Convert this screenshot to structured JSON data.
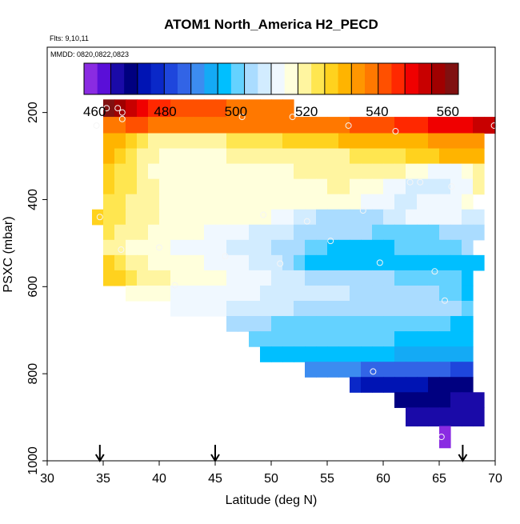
{
  "chart_data": {
    "type": "heatmap",
    "title": "ATOM1 North_America H2_PECD",
    "subtitle_flights": "Flts: 9,10,11",
    "subtitle_dates": "MMDD: 0820,0822,0823",
    "xlabel": "Latitude (deg N)",
    "ylabel": "PSXC (mbar)",
    "xlim": [
      30,
      70
    ],
    "ylim": [
      1000,
      50
    ],
    "x_ticks": [
      30,
      35,
      40,
      45,
      50,
      55,
      60,
      65,
      70
    ],
    "y_ticks": [
      200,
      400,
      600,
      800,
      1000
    ],
    "colorbar": {
      "min": 457,
      "max": 563,
      "ticks": [
        460,
        480,
        500,
        520,
        540,
        560
      ],
      "colors": [
        "#8a2be2",
        "#5a0fd8",
        "#1a0aa8",
        "#000080",
        "#0014b4",
        "#0a28c8",
        "#1e46dc",
        "#3264e6",
        "#3c8cf0",
        "#14aaf5",
        "#00bfff",
        "#64d2ff",
        "#aadcff",
        "#d2ecff",
        "#f0f8ff",
        "#ffffdc",
        "#fff5a0",
        "#ffe650",
        "#ffd21e",
        "#ffb400",
        "#ff9600",
        "#ff7800",
        "#ff5000",
        "#ff2800",
        "#f00000",
        "#c80000",
        "#a00000",
        "#801010"
      ]
    },
    "arrows_latitude": [
      34.7,
      45.0,
      67.1
    ],
    "cell_width_deg": 1.0,
    "rows": [
      {
        "p": 190,
        "x0": 35.0,
        "values": [
          563,
          556,
          552,
          549,
          546,
          545,
          544,
          543,
          543,
          542,
          541,
          540,
          540,
          540,
          539,
          539,
          540
        ]
      },
      {
        "p": 230,
        "x0": 35.0,
        "values": [
          539,
          540,
          541,
          541,
          540,
          540,
          539,
          539,
          539,
          539,
          539,
          538,
          538,
          538,
          538,
          538,
          538,
          538,
          538,
          539,
          539,
          540,
          541,
          542,
          543,
          544,
          545,
          546,
          547,
          548,
          549,
          550,
          551,
          552,
          553,
          554
        ]
      },
      {
        "p": 265,
        "x0": 35.0,
        "values": [
          532,
          530,
          527,
          524,
          521,
          520,
          519,
          519,
          519,
          520,
          521,
          522,
          522,
          523,
          524,
          525,
          526,
          527,
          527,
          528,
          528,
          529,
          529,
          530,
          530,
          531,
          531,
          532,
          532,
          533,
          533,
          534,
          534,
          534
        ]
      },
      {
        "p": 300,
        "x0": 35.0,
        "values": [
          530,
          528,
          524,
          521,
          519,
          517,
          516,
          516,
          516,
          517,
          517,
          518,
          518,
          518,
          519,
          519,
          519,
          520,
          520,
          521,
          521,
          521,
          522,
          522,
          523,
          524,
          525,
          526,
          527,
          528,
          529,
          530,
          531,
          532
        ]
      },
      {
        "p": 335,
        "x0": 35.0,
        "values": [
          528,
          525,
          522,
          519,
          517,
          516,
          515,
          515,
          515,
          515,
          516,
          516,
          516,
          516,
          517,
          517,
          517,
          518,
          518,
          518,
          518,
          519,
          519,
          520,
          520,
          519,
          518,
          516,
          514,
          512,
          511,
          512,
          514,
          518
        ]
      },
      {
        "p": 370,
        "x0": 35.0,
        "values": [
          526,
          524,
          522,
          520,
          518,
          517,
          516,
          516,
          515,
          515,
          515,
          516,
          516,
          516,
          516,
          517,
          517,
          517,
          517,
          517,
          518,
          518,
          517,
          516,
          515,
          513,
          511,
          509,
          508,
          507,
          508,
          510,
          513,
          520
        ]
      },
      {
        "p": 405,
        "x0": 35.0,
        "values": [
          525,
          523,
          521,
          520,
          518,
          517,
          516,
          516,
          515,
          515,
          515,
          515,
          516,
          516,
          516,
          516,
          516,
          516,
          517,
          517,
          517,
          516,
          514,
          512,
          511,
          510,
          509,
          509,
          510,
          511,
          512,
          513,
          514
        ]
      },
      {
        "p": 440,
        "x0": 34.0,
        "values": [
          526,
          525,
          523,
          521,
          519,
          518,
          517,
          516,
          515,
          515,
          515,
          515,
          515,
          515,
          515,
          514,
          513,
          511,
          509,
          507,
          506,
          505,
          505,
          504,
          504,
          505,
          507,
          509,
          511,
          512,
          512,
          511,
          510,
          509,
          508
        ]
      },
      {
        "p": 475,
        "x0": 35.0,
        "values": [
          523,
          521,
          519,
          518,
          516,
          515,
          514,
          514,
          514,
          513,
          512,
          511,
          510,
          509,
          508,
          507,
          507,
          506,
          505,
          504,
          504,
          504,
          503,
          503,
          502,
          501,
          501,
          501,
          501,
          502,
          503,
          504,
          505,
          506
        ]
      },
      {
        "p": 510,
        "x0": 35.0,
        "values": [
          519,
          518,
          517,
          516,
          515,
          514,
          513,
          512,
          512,
          511,
          510,
          509,
          508,
          508,
          507,
          506,
          505,
          503,
          501,
          499,
          498,
          497,
          497,
          497,
          498,
          498,
          499,
          499,
          500,
          500,
          501,
          502,
          504
        ]
      },
      {
        "p": 545,
        "x0": 35.0,
        "values": [
          526,
          523,
          520,
          518,
          517,
          516,
          515,
          514,
          514,
          513,
          512,
          511,
          510,
          509,
          508,
          507,
          505,
          500,
          498,
          497,
          496,
          496,
          496,
          496,
          496,
          496,
          496,
          496,
          496,
          497,
          497,
          496,
          496,
          498
        ]
      },
      {
        "p": 580,
        "x0": 35.0,
        "values": [
          528,
          526,
          523,
          521,
          519,
          518,
          517,
          517,
          516,
          515,
          514,
          513,
          512,
          511,
          510,
          509,
          508,
          507,
          506,
          505,
          504,
          504,
          503,
          503,
          503,
          503,
          502,
          502,
          502,
          501,
          500,
          499,
          497
        ]
      },
      {
        "p": 615,
        "x0": 37.0,
        "values": [
          516,
          515,
          514,
          514,
          513,
          513,
          512,
          512,
          511,
          511,
          510,
          510,
          509,
          509,
          509,
          508,
          508,
          508,
          507,
          507,
          506,
          506,
          505,
          505,
          505,
          504,
          504,
          503,
          502,
          501,
          497
        ]
      },
      {
        "p": 650,
        "x0": 41.0,
        "values": [
          513,
          513,
          512,
          511,
          510,
          509,
          509,
          508,
          508,
          507,
          507,
          506,
          506,
          506,
          505,
          505,
          505,
          505,
          504,
          504,
          504,
          504,
          503,
          503,
          503,
          503,
          502
        ]
      },
      {
        "p": 685,
        "x0": 46.0,
        "values": [
          504,
          504,
          503,
          503,
          502,
          502,
          502,
          501,
          501,
          501,
          501,
          500,
          500,
          500,
          500,
          500,
          500,
          500,
          500,
          499,
          498,
          496
        ]
      },
      {
        "p": 720,
        "x0": 48.0,
        "values": [
          502,
          501,
          500,
          500,
          500,
          499,
          499,
          499,
          499,
          499,
          499,
          499,
          499,
          498,
          498,
          498,
          498,
          498,
          497,
          496
        ]
      },
      {
        "p": 755,
        "x0": 49.0,
        "values": [
          497,
          497,
          496,
          496,
          496,
          496,
          495,
          495,
          495,
          495,
          495,
          495,
          494,
          494,
          494,
          494,
          494,
          494,
          494
        ]
      },
      {
        "p": 790,
        "x0": 53.0,
        "values": [
          489,
          489,
          488,
          488,
          488,
          487,
          487,
          487,
          487,
          486,
          486,
          485,
          484,
          483,
          482
        ]
      },
      {
        "p": 825,
        "x0": 57.0,
        "values": [
          476,
          475,
          474,
          474,
          473,
          473,
          473,
          472,
          472,
          472,
          471
        ]
      },
      {
        "p": 860,
        "x0": 61.0,
        "values": [
          470,
          470,
          469,
          469,
          469,
          468,
          468,
          467
        ]
      },
      {
        "p": 895,
        "x0": 62.0,
        "values": [
          466,
          466,
          466,
          466,
          466,
          466,
          466
        ]
      },
      {
        "p": 945,
        "x0": 65.0,
        "values": [
          458
        ]
      }
    ],
    "observations": [
      {
        "lat": 35.3,
        "p": 190
      },
      {
        "lat": 36.3,
        "p": 190
      },
      {
        "lat": 36.7,
        "p": 200
      },
      {
        "lat": 36.7,
        "p": 215
      },
      {
        "lat": 34.4,
        "p": 230
      },
      {
        "lat": 47.4,
        "p": 210
      },
      {
        "lat": 51.9,
        "p": 210
      },
      {
        "lat": 56.9,
        "p": 230
      },
      {
        "lat": 61.1,
        "p": 243
      },
      {
        "lat": 69.9,
        "p": 230
      },
      {
        "lat": 62.4,
        "p": 360
      },
      {
        "lat": 63.3,
        "p": 360
      },
      {
        "lat": 66.1,
        "p": 370
      },
      {
        "lat": 49.3,
        "p": 435
      },
      {
        "lat": 58.2,
        "p": 425
      },
      {
        "lat": 53.2,
        "p": 450
      },
      {
        "lat": 34.7,
        "p": 440
      },
      {
        "lat": 55.3,
        "p": 495
      },
      {
        "lat": 36.6,
        "p": 515
      },
      {
        "lat": 40.0,
        "p": 510
      },
      {
        "lat": 45.9,
        "p": 530
      },
      {
        "lat": 50.8,
        "p": 547
      },
      {
        "lat": 59.7,
        "p": 545
      },
      {
        "lat": 64.6,
        "p": 565
      },
      {
        "lat": 41.4,
        "p": 597
      },
      {
        "lat": 65.5,
        "p": 632
      },
      {
        "lat": 59.1,
        "p": 795
      },
      {
        "lat": 65.2,
        "p": 945
      }
    ]
  }
}
